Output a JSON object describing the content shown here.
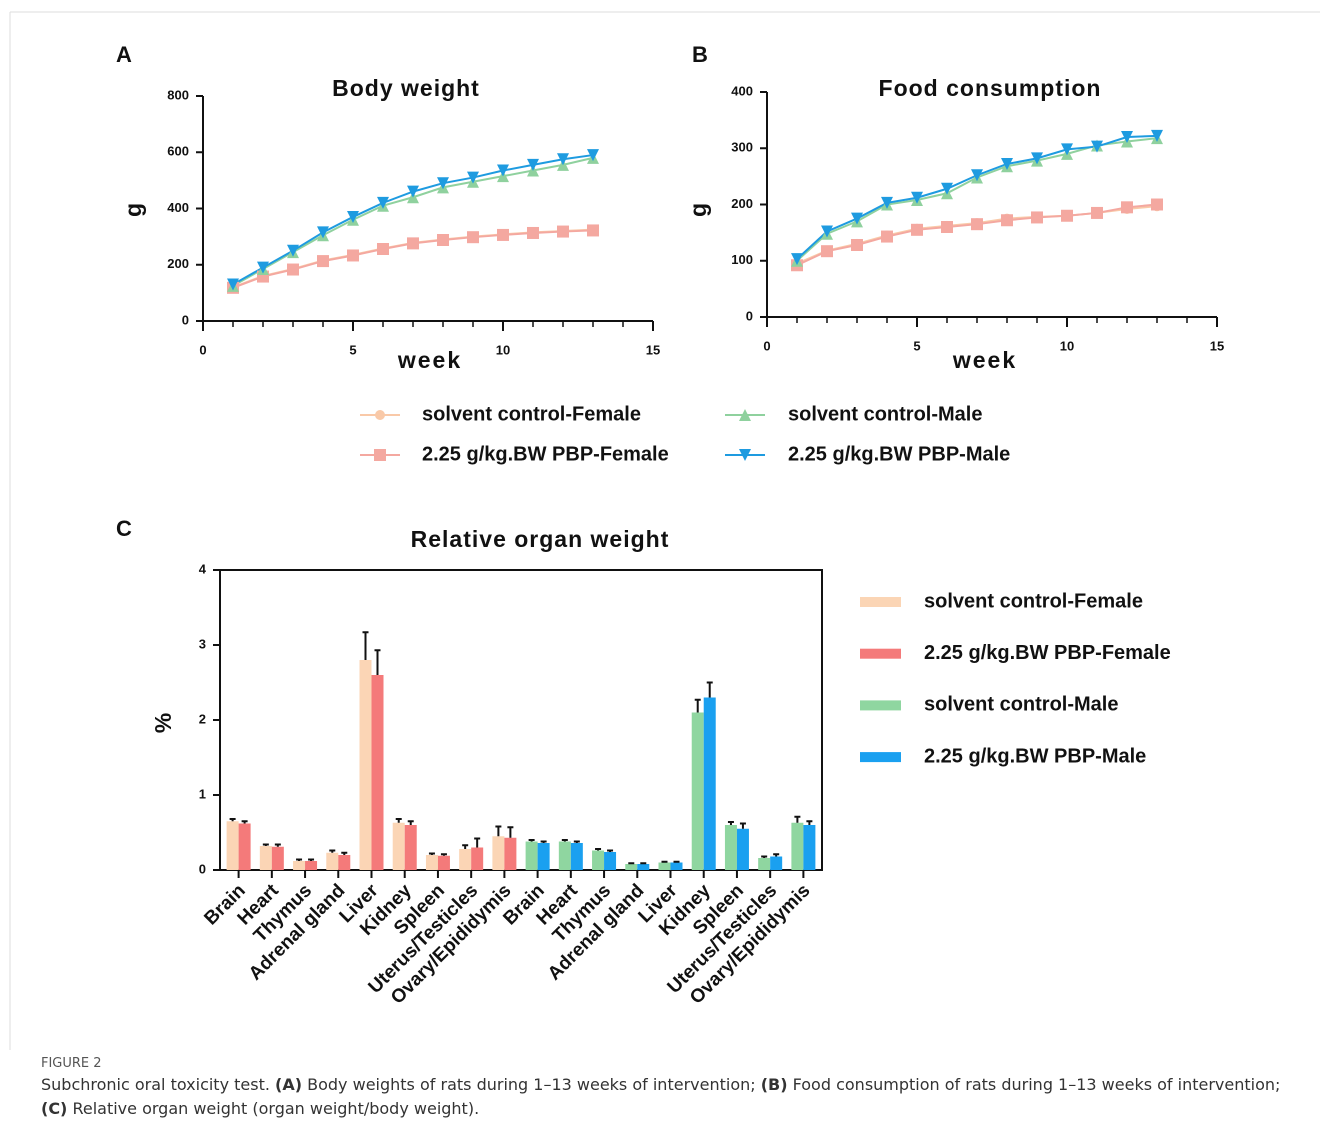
{
  "panels": [
    "A",
    "B",
    "C"
  ],
  "chart_data": [
    {
      "type": "line",
      "title": "Body weight",
      "xlabel": "week",
      "ylabel": "g",
      "x": [
        1,
        2,
        3,
        4,
        5,
        6,
        7,
        8,
        9,
        10,
        11,
        12,
        13
      ],
      "xlim": [
        0,
        15
      ],
      "xticks": [
        0,
        5,
        10,
        15
      ],
      "ylim": [
        0,
        800
      ],
      "yticks": [
        0,
        200,
        400,
        600,
        800
      ],
      "series": [
        {
          "name": "solvent control-Female",
          "color": "#f9c9a8",
          "marker": "circle",
          "values": [
            120,
            160,
            185,
            215,
            235,
            258,
            278,
            290,
            300,
            308,
            315,
            320,
            325
          ]
        },
        {
          "name": "2.25 g/kg.BW PBP-Female",
          "color": "#f4a8a0",
          "marker": "square",
          "values": [
            118,
            158,
            183,
            213,
            233,
            256,
            276,
            288,
            298,
            306,
            313,
            318,
            322
          ]
        },
        {
          "name": "solvent control-Male",
          "color": "#8fd19e",
          "marker": "triangle",
          "values": [
            125,
            185,
            245,
            305,
            360,
            410,
            440,
            475,
            495,
            515,
            535,
            555,
            580
          ]
        },
        {
          "name": "2.25 g/kg.BW PBP-Male",
          "color": "#1e9be0",
          "marker": "triangle-down",
          "values": [
            130,
            190,
            250,
            315,
            370,
            420,
            460,
            490,
            510,
            535,
            555,
            575,
            590
          ]
        }
      ]
    },
    {
      "type": "line",
      "title": "Food consumption",
      "xlabel": "week",
      "ylabel": "g",
      "x": [
        1,
        2,
        3,
        4,
        5,
        6,
        7,
        8,
        9,
        10,
        11,
        12,
        13
      ],
      "xlim": [
        0,
        15
      ],
      "xticks": [
        0,
        5,
        10,
        15
      ],
      "ylim": [
        0,
        400
      ],
      "yticks": [
        0,
        100,
        200,
        300,
        400
      ],
      "series": [
        {
          "name": "solvent control-Female",
          "color": "#f9c9a8",
          "marker": "circle",
          "values": [
            95,
            118,
            130,
            145,
            157,
            162,
            167,
            175,
            178,
            180,
            185,
            192,
            197
          ]
        },
        {
          "name": "2.25 g/kg.BW PBP-Female",
          "color": "#f4a8a0",
          "marker": "square",
          "values": [
            92,
            117,
            128,
            143,
            155,
            160,
            165,
            172,
            177,
            180,
            185,
            195,
            200
          ]
        },
        {
          "name": "solvent control-Male",
          "color": "#8fd19e",
          "marker": "triangle",
          "values": [
            100,
            148,
            170,
            200,
            208,
            220,
            248,
            268,
            278,
            290,
            305,
            312,
            318
          ]
        },
        {
          "name": "2.25 g/kg.BW PBP-Male",
          "color": "#1e9be0",
          "marker": "triangle-down",
          "values": [
            103,
            152,
            175,
            203,
            212,
            228,
            252,
            272,
            282,
            298,
            303,
            320,
            322
          ]
        }
      ]
    },
    {
      "type": "bar",
      "title": "Relative organ weight",
      "ylabel": "%",
      "categories": [
        "Brain",
        "Heart",
        "Thymus",
        "Adrenal gland",
        "Liver",
        "Kidney",
        "Spleen",
        "Uterus/Testicles",
        "Ovary/Epididymis",
        "Brain",
        "Heart",
        "Thymus",
        "Adrenal gland",
        "Liver",
        "Kidney",
        "Spleen",
        "Uterus/Testicles",
        "Ovary/Epididymis"
      ],
      "ylim": [
        0,
        4
      ],
      "yticks": [
        0,
        1,
        2,
        3,
        4
      ],
      "series": [
        {
          "name": "solvent control-Female",
          "color": "#fbd5b5",
          "values": [
            0.65,
            0.32,
            0.12,
            0.23,
            2.8,
            0.63,
            0.2,
            0.28,
            0.45,
            null,
            null,
            null,
            null,
            null,
            null,
            null,
            null,
            null
          ],
          "errors": [
            0.03,
            0.02,
            0.02,
            0.03,
            0.37,
            0.05,
            0.02,
            0.05,
            0.13,
            null,
            null,
            null,
            null,
            null,
            null,
            null,
            null,
            null
          ]
        },
        {
          "name": "2.25 g/kg.BW PBP-Female",
          "color": "#f47a7a",
          "values": [
            0.62,
            0.31,
            0.12,
            0.2,
            2.6,
            0.6,
            0.19,
            0.3,
            0.43,
            null,
            null,
            null,
            null,
            null,
            null,
            null,
            null,
            null
          ],
          "errors": [
            0.03,
            0.03,
            0.02,
            0.03,
            0.33,
            0.05,
            0.02,
            0.12,
            0.14,
            null,
            null,
            null,
            null,
            null,
            null,
            null,
            null,
            null
          ]
        },
        {
          "name": "solvent control-Male",
          "color": "#8fd6a0",
          "values": [
            null,
            null,
            null,
            null,
            null,
            null,
            null,
            null,
            null,
            0.38,
            0.38,
            0.26,
            0.08,
            0.1,
            2.1,
            0.6,
            0.16,
            0.63
          ],
          "errors": [
            null,
            null,
            null,
            null,
            null,
            null,
            null,
            null,
            null,
            0.02,
            0.02,
            0.02,
            0.01,
            0.01,
            0.17,
            0.04,
            0.02,
            0.08
          ]
        },
        {
          "name": "2.25 g/kg.BW PBP-Male",
          "color": "#1aa0f0",
          "values": [
            null,
            null,
            null,
            null,
            null,
            null,
            null,
            null,
            null,
            0.36,
            0.36,
            0.24,
            0.08,
            0.1,
            2.3,
            0.55,
            0.18,
            0.6
          ],
          "errors": [
            null,
            null,
            null,
            null,
            null,
            null,
            null,
            null,
            null,
            0.02,
            0.02,
            0.02,
            0.01,
            0.01,
            0.2,
            0.07,
            0.03,
            0.05
          ]
        }
      ]
    }
  ],
  "caption": {
    "label": "FIGURE 2",
    "runs": [
      {
        "text": "Subchronic oral toxicity test. ",
        "bold": false
      },
      {
        "text": "(A)",
        "bold": true
      },
      {
        "text": " Body weights of rats during 1–13 weeks of intervention; ",
        "bold": false
      },
      {
        "text": "(B)",
        "bold": true
      },
      {
        "text": " Food consumption of rats during 1–13 weeks of intervention; ",
        "bold": false
      },
      {
        "text": "(C)",
        "bold": true
      },
      {
        "text": " Relative organ weight (organ weight/body weight).",
        "bold": false
      }
    ]
  }
}
